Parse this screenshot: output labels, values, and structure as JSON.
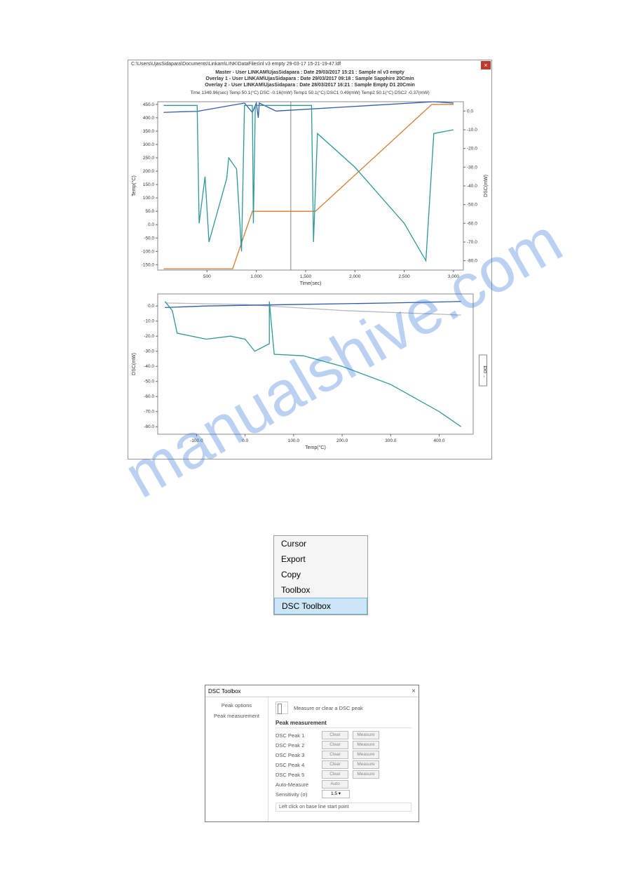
{
  "watermark": "manualshive.com",
  "chart_window": {
    "path": "C:\\Users\\UjasSidapara\\Documents\\Linkam\\LINK\\DataFiles\\nl v3 empty 29-03-17 15-21-19-47.ldf",
    "headers": [
      "Master - User LINKAM\\UjasSidapara : Date 29/03/2017 15:21 : Sample nl v3 empty",
      "Overlay 1 - User LINKAM\\UjasSidapara : Date 29/03/2017 09:18 : Sample Sapphire 20Cmin",
      "Overlay 2 - User LINKAM\\UjasSidapara : Date 28/03/2017 16:21 : Sample Empty D1 20Cmin"
    ],
    "status": "Time 1349.96(sec) Temp 50.1(°C) DSC -0.16(mW) Temp1 50.1(°C) DSC1 0.49(mW) Temp2 50.1(°C) DSC2 -0.37(mW)",
    "close_btn": "×"
  },
  "chart1": {
    "type": "line",
    "x_axis": "Time(sec)",
    "y_left_axis": "Temp(°C)",
    "y_right_axis": "DSC(mW)",
    "x_ticks": [
      500,
      1000,
      1500,
      2000,
      2500,
      3000
    ],
    "y_left_ticks": [
      -150,
      -100,
      -50,
      0,
      50,
      100,
      150,
      200,
      250,
      300,
      350,
      400,
      450
    ],
    "y_right_ticks": [
      -80,
      -70,
      -60,
      -50,
      -40,
      -30,
      -20,
      -10,
      0
    ],
    "xlim": [
      0,
      3100
    ],
    "ylim_left": [
      -170,
      460
    ],
    "ylim_right": [
      -85,
      5
    ],
    "series": {
      "temp_ramp": {
        "color": "#d67b34",
        "points": [
          [
            60,
            -165
          ],
          [
            760,
            -165
          ],
          [
            960,
            50
          ],
          [
            1600,
            50
          ],
          [
            2780,
            450
          ],
          [
            3000,
            450
          ]
        ]
      },
      "blue_top": {
        "color": "#2e5aa8",
        "points": [
          [
            60,
            420
          ],
          [
            200,
            422
          ],
          [
            400,
            424
          ],
          [
            880,
            455
          ],
          [
            960,
            420
          ],
          [
            1000,
            455
          ],
          [
            1020,
            400
          ],
          [
            1030,
            455
          ],
          [
            1200,
            425
          ],
          [
            2800,
            460
          ],
          [
            3000,
            455
          ]
        ]
      },
      "teal_dsc": {
        "color": "#2e9898",
        "right_axis": true,
        "points": [
          [
            60,
            3
          ],
          [
            400,
            3
          ],
          [
            420,
            -60
          ],
          [
            480,
            -35
          ],
          [
            520,
            -70
          ],
          [
            700,
            -36
          ],
          [
            720,
            -25
          ],
          [
            800,
            -31
          ],
          [
            850,
            -75
          ],
          [
            880,
            3
          ],
          [
            960,
            3
          ],
          [
            970,
            -60
          ],
          [
            990,
            3
          ],
          [
            1050,
            3
          ],
          [
            1560,
            3
          ],
          [
            1580,
            -70
          ],
          [
            1620,
            -12
          ],
          [
            2000,
            -30
          ],
          [
            2500,
            -60
          ],
          [
            2720,
            -80
          ],
          [
            2800,
            -12
          ],
          [
            3000,
            -10
          ]
        ]
      }
    },
    "cursor_x": 1350,
    "background": "#ffffff",
    "border_color": "#888888"
  },
  "chart2": {
    "type": "line",
    "x_axis": "Temp(°C)",
    "y_axis": "DSC(mW)",
    "x_ticks": [
      -100,
      0,
      100,
      200,
      300,
      400
    ],
    "y_ticks": [
      -80,
      -70,
      -60,
      -50,
      -40,
      -30,
      -20,
      -10,
      0
    ],
    "xlim": [
      -180,
      470
    ],
    "ylim": [
      -85,
      8
    ],
    "series": {
      "teal": {
        "color": "#2e9898",
        "points": [
          [
            -165,
            3
          ],
          [
            -150,
            -3
          ],
          [
            -140,
            -18
          ],
          [
            -80,
            -22
          ],
          [
            -30,
            -20
          ],
          [
            0,
            -22
          ],
          [
            20,
            -30
          ],
          [
            50,
            -25
          ],
          [
            50,
            3
          ],
          [
            60,
            -32
          ],
          [
            120,
            -33
          ],
          [
            200,
            -40
          ],
          [
            300,
            -52
          ],
          [
            400,
            -70
          ],
          [
            445,
            -80
          ]
        ]
      },
      "blue": {
        "color": "#2e5aa8",
        "points": [
          [
            -165,
            -1
          ],
          [
            -80,
            0
          ],
          [
            100,
            1
          ],
          [
            300,
            2
          ],
          [
            445,
            3
          ]
        ]
      },
      "gray": {
        "color": "#b8b8b8",
        "points": [
          [
            -165,
            2
          ],
          [
            0,
            1
          ],
          [
            200,
            -3
          ],
          [
            445,
            -6
          ]
        ]
      }
    },
    "exo_label": "EXO →",
    "background": "#ffffff",
    "border_color": "#888888"
  },
  "context_menu": {
    "items": [
      "Cursor",
      "Export",
      "Copy",
      "Toolbox",
      "DSC Toolbox"
    ],
    "selected_index": 4
  },
  "toolbox": {
    "title": "DSC Toolbox",
    "sidebar": [
      "Peak options",
      "Peak measurement"
    ],
    "header_text": "Measure or clear a DSC peak",
    "section": "Peak measurement",
    "peaks": [
      {
        "label": "DSC Peak 1",
        "clear": "Clear",
        "measure": "Measure"
      },
      {
        "label": "DSC Peak 2",
        "clear": "Clear",
        "measure": "Measure"
      },
      {
        "label": "DSC Peak 3",
        "clear": "Clear",
        "measure": "Measure"
      },
      {
        "label": "DSC Peak 4",
        "clear": "Clear",
        "measure": "Measure"
      },
      {
        "label": "DSC Peak 5",
        "clear": "Clear",
        "measure": "Measure"
      }
    ],
    "auto_measure": {
      "label": "Auto-Measure",
      "btn": "Auto"
    },
    "sensitivity": {
      "label": "Sensitivity (σ)",
      "value": "1.5"
    },
    "footer": "Left click on base line start point",
    "close": "×"
  }
}
